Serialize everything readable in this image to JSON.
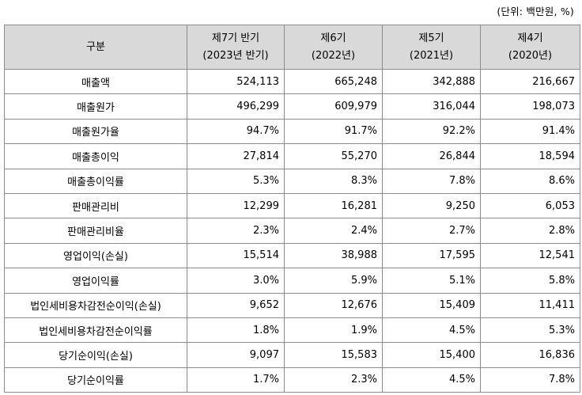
{
  "unit_note": "(단위: 백만원, %)",
  "header": {
    "corner": "구분",
    "periods": [
      {
        "line1": "제7기 반기",
        "line2": "(2023년 반기)"
      },
      {
        "line1": "제6기",
        "line2": "(2022년)"
      },
      {
        "line1": "제5기",
        "line2": "(2021년)"
      },
      {
        "line1": "제4기",
        "line2": "(2020년)"
      }
    ]
  },
  "rows": [
    {
      "label": "매출액",
      "values": [
        "524,113",
        "665,248",
        "342,888",
        "216,667"
      ]
    },
    {
      "label": "매출원가",
      "values": [
        "496,299",
        "609,979",
        "316,044",
        "198,073"
      ]
    },
    {
      "label": "매출원가율",
      "values": [
        "94.7%",
        "91.7%",
        "92.2%",
        "91.4%"
      ]
    },
    {
      "label": "매출총이익",
      "values": [
        "27,814",
        "55,270",
        "26,844",
        "18,594"
      ]
    },
    {
      "label": "매출총이익률",
      "values": [
        "5.3%",
        "8.3%",
        "7.8%",
        "8.6%"
      ]
    },
    {
      "label": "판매관리비",
      "values": [
        "12,299",
        "16,281",
        "9,250",
        "6,053"
      ]
    },
    {
      "label": "판매관리비율",
      "values": [
        "2.3%",
        "2.4%",
        "2.7%",
        "2.8%"
      ]
    },
    {
      "label": "영업이익(손실)",
      "values": [
        "15,514",
        "38,988",
        "17,595",
        "12,541"
      ]
    },
    {
      "label": "영업이익률",
      "values": [
        "3.0%",
        "5.9%",
        "5.1%",
        "5.8%"
      ]
    },
    {
      "label": "법인세비용차감전순이익(손실)",
      "values": [
        "9,652",
        "12,676",
        "15,409",
        "11,411"
      ]
    },
    {
      "label": "법인세비용차감전순이익률",
      "values": [
        "1.8%",
        "1.9%",
        "4.5%",
        "5.3%"
      ]
    },
    {
      "label": "당기순이익(손실)",
      "values": [
        "9,097",
        "15,583",
        "15,400",
        "16,836"
      ]
    },
    {
      "label": "당기순이익률",
      "values": [
        "1.7%",
        "2.3%",
        "4.5%",
        "7.8%"
      ]
    }
  ]
}
